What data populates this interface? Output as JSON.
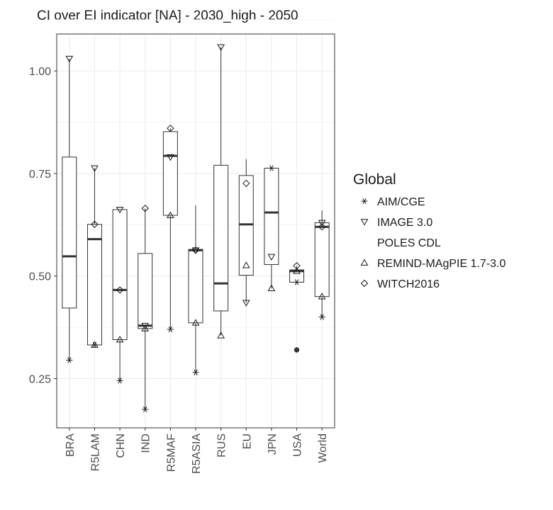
{
  "chart_data": {
    "type": "box",
    "title": "CI over EI indicator [NA] - 2030_high - 2050",
    "xlabel": "",
    "ylabel": "",
    "ylim": [
      0.13,
      1.09
    ],
    "yticks": [
      0.25,
      0.5,
      0.75,
      1.0
    ],
    "ytick_labels": [
      "0.25",
      "0.50",
      "0.75",
      "1.00"
    ],
    "grid": true,
    "legend_title": "Global",
    "legend_position": "right",
    "legend": [
      {
        "label": "AIM/CGE",
        "symbol": "asterisk"
      },
      {
        "label": "IMAGE 3.0",
        "symbol": "triangle-down"
      },
      {
        "label": "POLES CDL",
        "symbol": "none"
      },
      {
        "label": "REMIND-MAgPIE 1.7-3.0",
        "symbol": "triangle-up"
      },
      {
        "label": "WITCH2016",
        "symbol": "diamond"
      }
    ],
    "categories": [
      "BRA",
      "R5LAM",
      "CHN",
      "IND",
      "R5MAF",
      "R5ASIA",
      "RUS",
      "EU",
      "JPN",
      "USA",
      "World"
    ],
    "boxes": [
      {
        "category": "BRA",
        "whisker_low": 0.295,
        "q1": 0.422,
        "median": 0.548,
        "q3": 0.79,
        "whisker_high": 1.03
      },
      {
        "category": "R5LAM",
        "whisker_low": 0.332,
        "q1": 0.332,
        "median": 0.59,
        "q3": 0.626,
        "whisker_high": 0.763
      },
      {
        "category": "CHN",
        "whisker_low": 0.245,
        "q1": 0.345,
        "median": 0.466,
        "q3": 0.662,
        "whisker_high": 0.662
      },
      {
        "category": "IND",
        "whisker_low": 0.175,
        "q1": 0.372,
        "median": 0.379,
        "q3": 0.555,
        "whisker_high": 0.665
      },
      {
        "category": "R5MAF",
        "whisker_low": 0.37,
        "q1": 0.648,
        "median": 0.793,
        "q3": 0.852,
        "whisker_high": 0.86
      },
      {
        "category": "R5ASIA",
        "whisker_low": 0.265,
        "q1": 0.386,
        "median": 0.563,
        "q3": 0.565,
        "whisker_high": 0.672
      },
      {
        "category": "RUS",
        "whisker_low": 0.355,
        "q1": 0.415,
        "median": 0.482,
        "q3": 0.77,
        "whisker_high": 1.058
      },
      {
        "category": "EU",
        "whisker_low": 0.435,
        "q1": 0.502,
        "median": 0.626,
        "q3": 0.745,
        "whisker_high": 0.785
      },
      {
        "category": "JPN",
        "whisker_low": 0.47,
        "q1": 0.528,
        "median": 0.655,
        "q3": 0.763,
        "whisker_high": 0.763
      },
      {
        "category": "USA",
        "whisker_low": 0.485,
        "q1": 0.485,
        "median": 0.512,
        "q3": 0.515,
        "whisker_high": 0.525
      },
      {
        "category": "World",
        "whisker_low": 0.4,
        "q1": 0.45,
        "median": 0.62,
        "q3": 0.63,
        "whisker_high": 0.66
      }
    ],
    "points": [
      {
        "category": "BRA",
        "model": "IMAGE 3.0",
        "value": 1.03
      },
      {
        "category": "BRA",
        "model": "AIM/CGE",
        "value": 0.295
      },
      {
        "category": "R5LAM",
        "model": "IMAGE 3.0",
        "value": 0.763
      },
      {
        "category": "R5LAM",
        "model": "WITCH2016",
        "value": 0.626
      },
      {
        "category": "R5LAM",
        "model": "AIM/CGE",
        "value": 0.332
      },
      {
        "category": "R5LAM",
        "model": "REMIND-MAgPIE 1.7-3.0",
        "value": 0.332
      },
      {
        "category": "CHN",
        "model": "IMAGE 3.0",
        "value": 0.662
      },
      {
        "category": "CHN",
        "model": "WITCH2016",
        "value": 0.466
      },
      {
        "category": "CHN",
        "model": "REMIND-MAgPIE 1.7-3.0",
        "value": 0.345
      },
      {
        "category": "CHN",
        "model": "AIM/CGE",
        "value": 0.245
      },
      {
        "category": "IND",
        "model": "WITCH2016",
        "value": 0.665
      },
      {
        "category": "IND",
        "model": "IMAGE 3.0",
        "value": 0.379
      },
      {
        "category": "IND",
        "model": "REMIND-MAgPIE 1.7-3.0",
        "value": 0.372
      },
      {
        "category": "IND",
        "model": "AIM/CGE",
        "value": 0.175
      },
      {
        "category": "R5MAF",
        "model": "WITCH2016",
        "value": 0.86
      },
      {
        "category": "R5MAF",
        "model": "IMAGE 3.0",
        "value": 0.79
      },
      {
        "category": "R5MAF",
        "model": "REMIND-MAgPIE 1.7-3.0",
        "value": 0.648
      },
      {
        "category": "R5MAF",
        "model": "AIM/CGE",
        "value": 0.37
      },
      {
        "category": "R5ASIA",
        "model": "IMAGE 3.0",
        "value": 0.563
      },
      {
        "category": "R5ASIA",
        "model": "WITCH2016",
        "value": 0.563
      },
      {
        "category": "R5ASIA",
        "model": "REMIND-MAgPIE 1.7-3.0",
        "value": 0.386
      },
      {
        "category": "R5ASIA",
        "model": "AIM/CGE",
        "value": 0.265
      },
      {
        "category": "RUS",
        "model": "IMAGE 3.0",
        "value": 1.058
      },
      {
        "category": "RUS",
        "model": "REMIND-MAgPIE 1.7-3.0",
        "value": 0.355
      },
      {
        "category": "EU",
        "model": "WITCH2016",
        "value": 0.726
      },
      {
        "category": "EU",
        "model": "REMIND-MAgPIE 1.7-3.0",
        "value": 0.526
      },
      {
        "category": "EU",
        "model": "IMAGE 3.0",
        "value": 0.435
      },
      {
        "category": "JPN",
        "model": "AIM/CGE",
        "value": 0.763
      },
      {
        "category": "JPN",
        "model": "IMAGE 3.0",
        "value": 0.547
      },
      {
        "category": "JPN",
        "model": "REMIND-MAgPIE 1.7-3.0",
        "value": 0.47
      },
      {
        "category": "USA",
        "model": "WITCH2016",
        "value": 0.525
      },
      {
        "category": "USA",
        "model": "REMIND-MAgPIE 1.7-3.0",
        "value": 0.512
      },
      {
        "category": "USA",
        "model": "AIM/CGE",
        "value": 0.485
      },
      {
        "category": "USA",
        "model": "outlier",
        "value": 0.32
      },
      {
        "category": "World",
        "model": "IMAGE 3.0",
        "value": 0.63
      },
      {
        "category": "World",
        "model": "WITCH2016",
        "value": 0.62
      },
      {
        "category": "World",
        "model": "REMIND-MAgPIE 1.7-3.0",
        "value": 0.45
      },
      {
        "category": "World",
        "model": "AIM/CGE",
        "value": 0.4
      }
    ]
  }
}
